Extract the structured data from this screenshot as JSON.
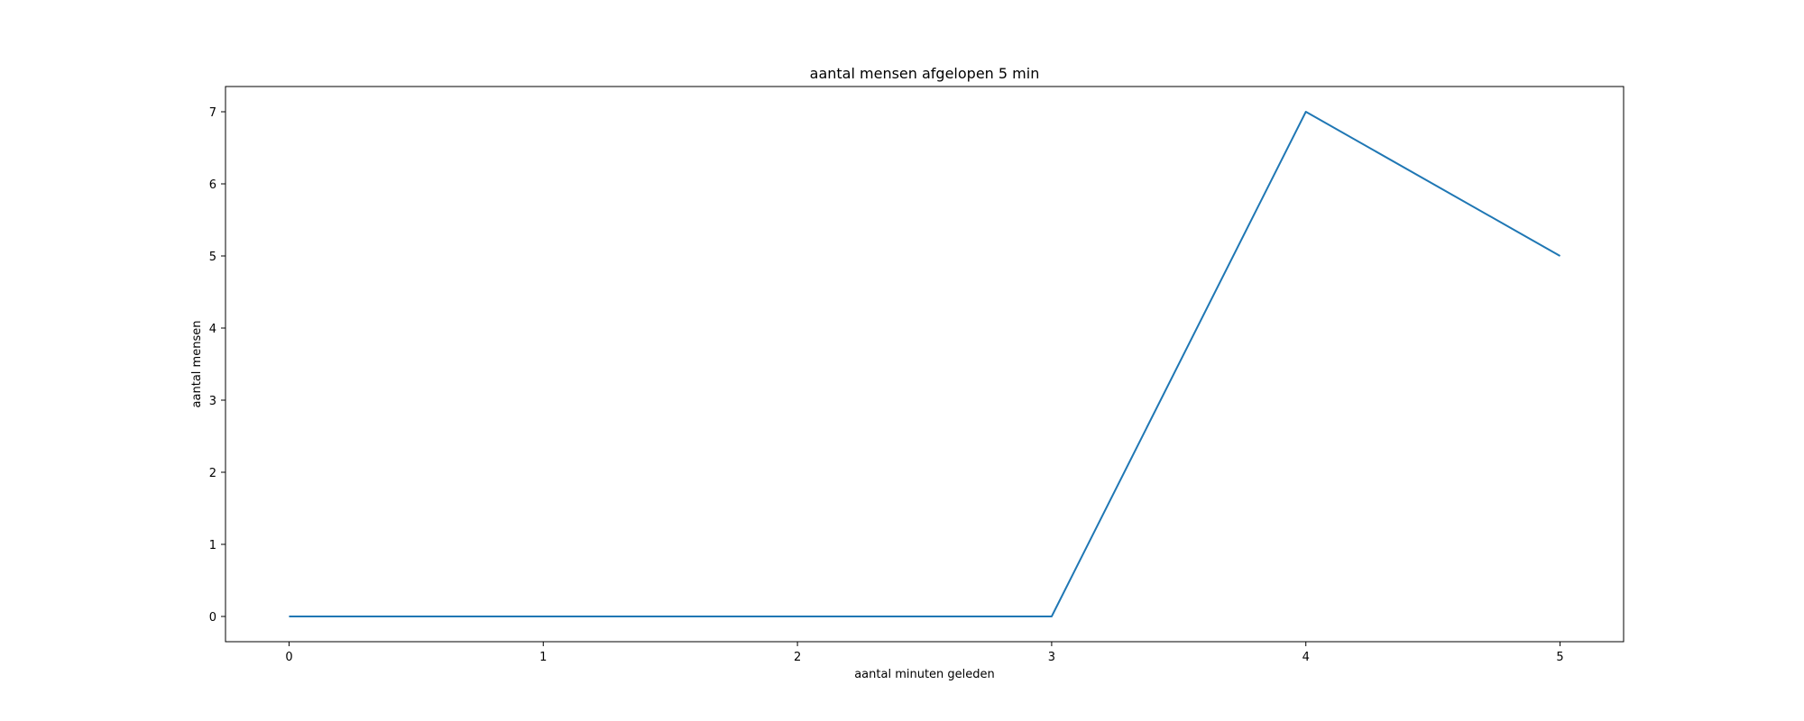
{
  "chart_data": {
    "type": "line",
    "title": "aantal mensen afgelopen 5 min",
    "xlabel": "aantal minuten geleden",
    "ylabel": "aantal mensen",
    "x": [
      0,
      1,
      2,
      3,
      4,
      5
    ],
    "series": [
      {
        "values": [
          0,
          0,
          0,
          0,
          7,
          5
        ],
        "color": "#1f77b4"
      }
    ],
    "xticks": [
      "0",
      "1",
      "2",
      "3",
      "4",
      "5"
    ],
    "yticks": [
      "0",
      "1",
      "2",
      "3",
      "4",
      "5",
      "6",
      "7"
    ],
    "xlim": [
      -0.25,
      5.25
    ],
    "ylim": [
      -0.35,
      7.35
    ],
    "grid": false,
    "legend": "none"
  }
}
